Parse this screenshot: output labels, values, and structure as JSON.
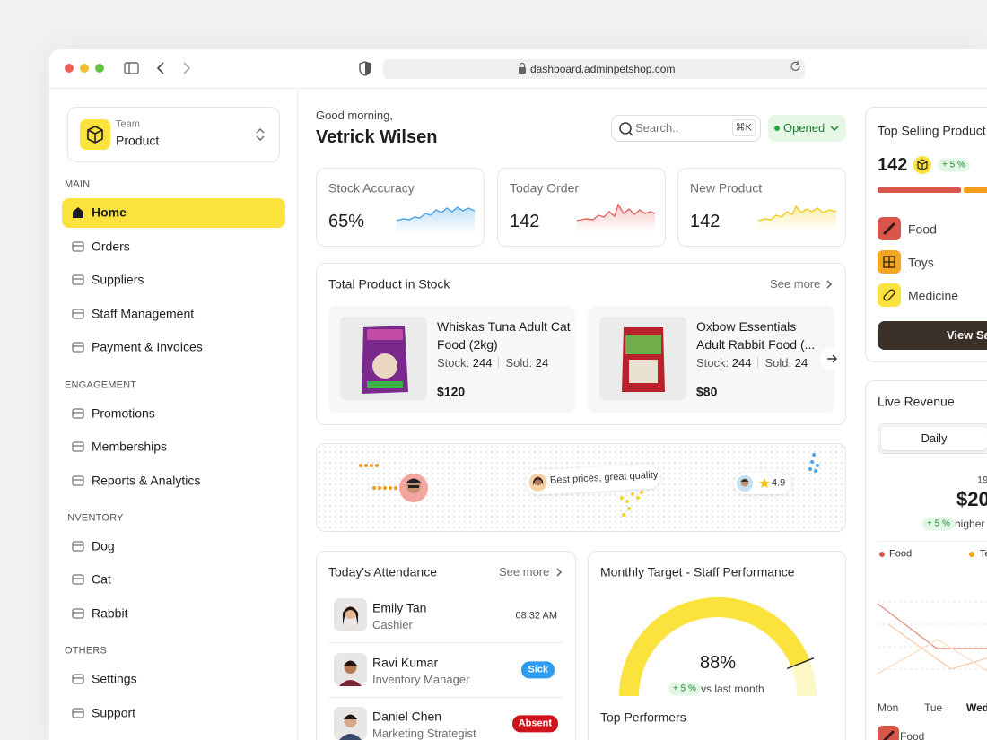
{
  "browser": {
    "url": "dashboard.adminpetshop.com"
  },
  "sidebar": {
    "team": {
      "label": "Team",
      "name": "Product"
    },
    "sections": [
      {
        "title": "MAIN",
        "items": [
          "Home",
          "Orders",
          "Suppliers",
          "Staff Management",
          "Payment & Invoices"
        ]
      },
      {
        "title": "ENGAGEMENT",
        "items": [
          "Promotions",
          "Memberships",
          "Reports & Analytics"
        ]
      },
      {
        "title": "INVENTORY",
        "items": [
          "Dog",
          "Cat",
          "Rabbit"
        ]
      },
      {
        "title": "OTHERS",
        "items": [
          "Settings",
          "Support"
        ]
      }
    ]
  },
  "header": {
    "greeting": "Good morning,",
    "name": "Vetrick Wilsen",
    "search_placeholder": "Search..",
    "shortcut": "⌘K",
    "status": "Opened"
  },
  "stats": [
    {
      "label": "Stock Accuracy",
      "value": "65%"
    },
    {
      "label": "Today Order",
      "value": "142"
    },
    {
      "label": "New Product",
      "value": "142"
    }
  ],
  "stock": {
    "title": "Total Product in Stock",
    "see_more": "See more",
    "products": [
      {
        "name": "Whiskas Tuna Adult Cat Food (2kg)",
        "stock_label": "Stock:",
        "stock": "244",
        "sold_label": "Sold:",
        "sold": "24",
        "price": "$120"
      },
      {
        "name": "Oxbow Essentials Adult Rabbit Food (...",
        "stock_label": "Stock:",
        "stock": "244",
        "sold_label": "Sold:",
        "sold": "24",
        "price": "$80"
      }
    ]
  },
  "map": {
    "review": "Best prices, great quality",
    "rating": "4.9"
  },
  "attendance": {
    "title": "Today's Attendance",
    "see_more": "See more",
    "people": [
      {
        "name": "Emily Tan",
        "role": "Cashier",
        "status": "08:32 AM"
      },
      {
        "name": "Ravi Kumar",
        "role": "Inventory Manager",
        "status": "Sick"
      },
      {
        "name": "Daniel Chen",
        "role": "Marketing Strategist",
        "status": "Absent"
      }
    ]
  },
  "target": {
    "title": "Monthly Target - Staff Performance",
    "value": "88%",
    "change": "+ 5 %",
    "change_label": "vs last month",
    "top_performers": "Top Performers"
  },
  "top_selling": {
    "title": "Top Selling Product",
    "value": "142",
    "change": "+ 5 %",
    "categories": [
      "Food",
      "Toys",
      "Medicine"
    ],
    "button": "View Sa"
  },
  "live_revenue": {
    "title": "Live Revenue",
    "tab": "Daily",
    "small": "19",
    "amount": "$20",
    "change": "+ 5 %",
    "change_label": "higher",
    "legend": [
      "Food",
      "Te"
    ],
    "days": [
      "Mon",
      "Tue",
      "Wed"
    ],
    "bottom": "Food"
  }
}
